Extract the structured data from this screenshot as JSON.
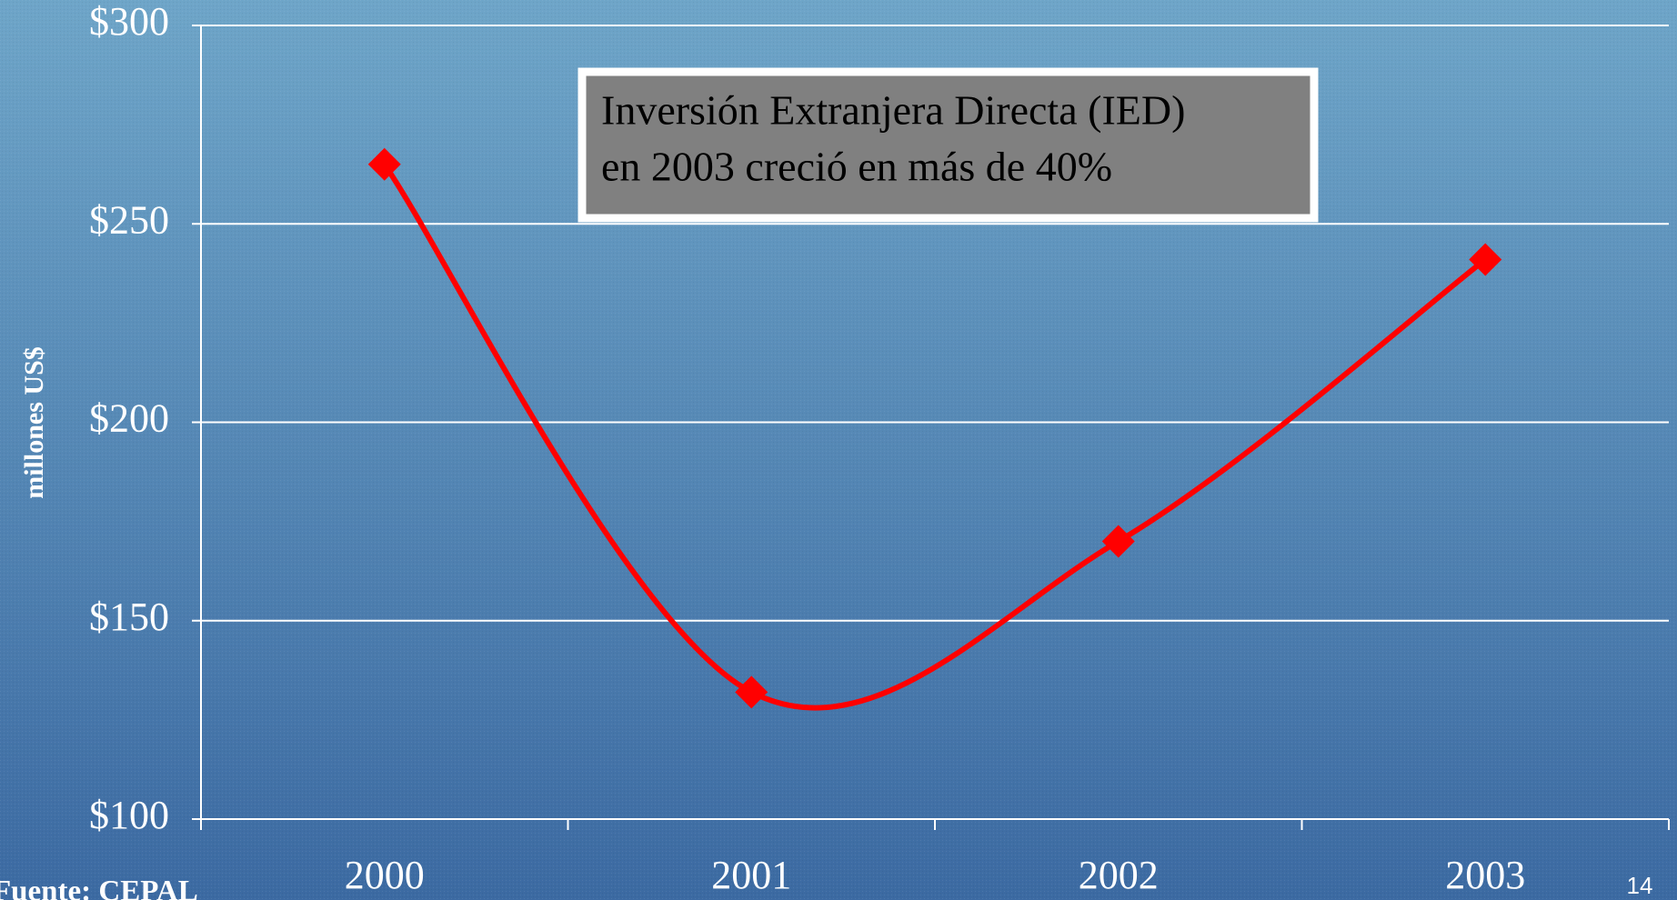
{
  "chart_data": {
    "type": "line",
    "annotation": [
      "Inversión Extranjera Directa (IED)",
      "en 2003 creció en más de 40%"
    ],
    "y_label": "millones US$",
    "source": "Fuente: CEPAL",
    "page_number": "14",
    "categories": [
      "2000",
      "2001",
      "2002",
      "2003"
    ],
    "series": [
      {
        "name": "IED",
        "color": "#ff0000",
        "values": [
          265,
          132,
          170,
          241
        ]
      }
    ],
    "ylim": [
      100,
      300
    ],
    "yticks": [
      {
        "value": 100,
        "label": "$100"
      },
      {
        "value": 150,
        "label": "$150"
      },
      {
        "value": 200,
        "label": "$200"
      },
      {
        "value": 250,
        "label": "$250"
      },
      {
        "value": 300,
        "label": "$300"
      }
    ],
    "grid": true,
    "smooth": true
  }
}
